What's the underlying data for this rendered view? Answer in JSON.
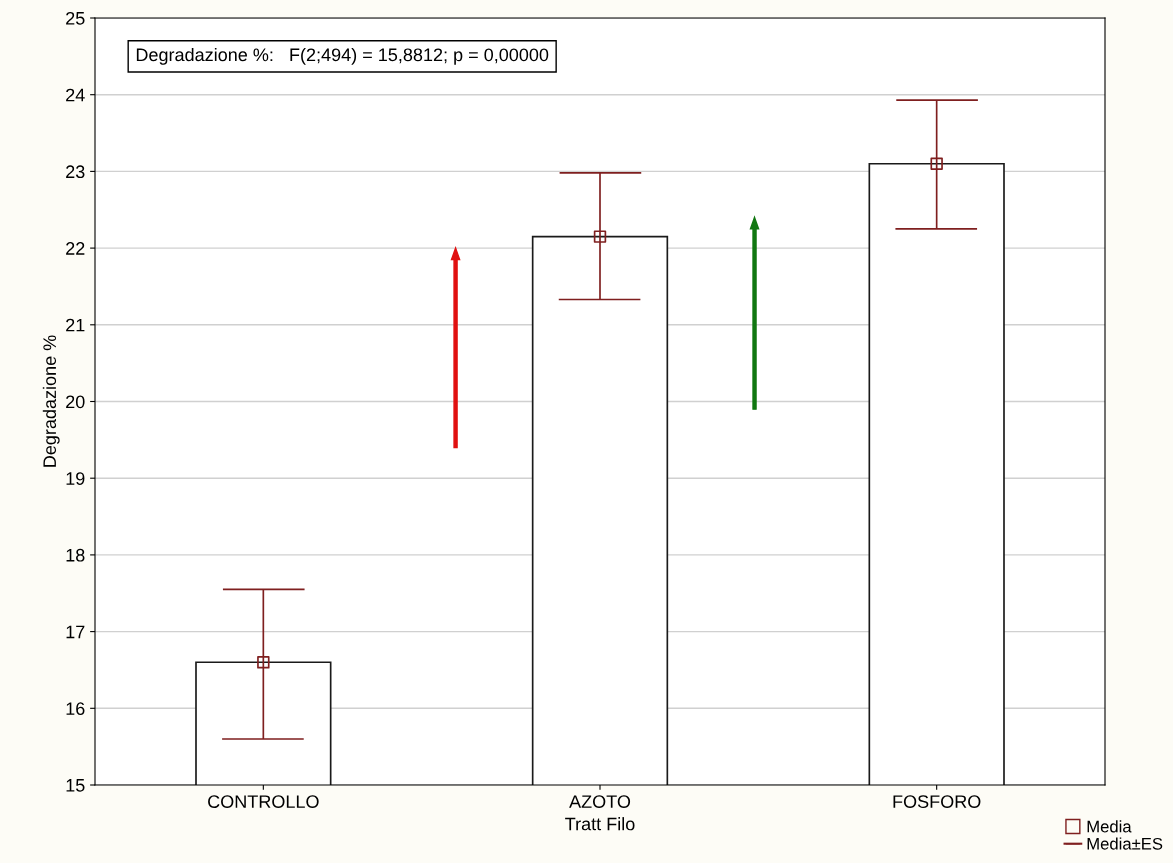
{
  "chart_data": {
    "type": "bar",
    "xlabel": "Tratt Filo",
    "ylabel": "Degradazione %",
    "categories": [
      "CONTROLLO",
      "AZOTO",
      "FOSFORO"
    ],
    "series": [
      {
        "color": "#ffffff",
        "values": [
          16.6,
          22.15,
          23.1
        ]
      },
      {
        "type": "scatter",
        "name": "Media",
        "color": "#7f1f1f",
        "marker": "square",
        "values": [
          16.6,
          22.15,
          23.1
        ],
        "errors": [
          [
            15.6,
            17.55
          ],
          [
            21.33,
            22.98
          ],
          [
            22.25,
            23.93
          ]
        ]
      }
    ],
    "ylim": [
      15,
      25
    ],
    "yticks": [
      15,
      16,
      17,
      18,
      19,
      20,
      21,
      22,
      23,
      24,
      25
    ],
    "grid": "y",
    "legend": "bottom right",
    "annotations": [
      "Degradazione %:   F(2;494) = 15,8812; p = 0,00000",
      "Media±ES"
    ]
  }
}
